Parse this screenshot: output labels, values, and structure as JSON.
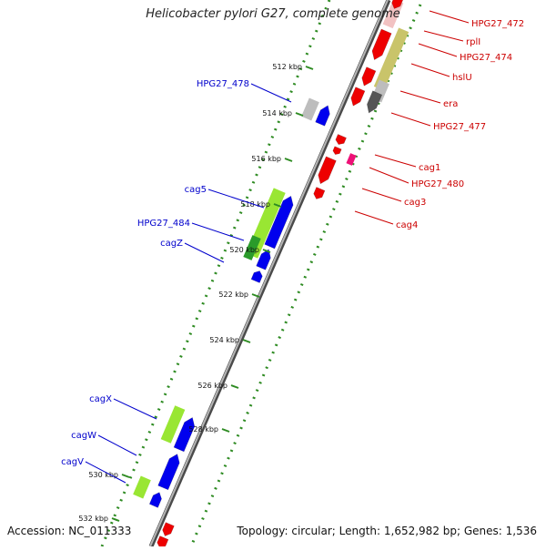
{
  "map": {
    "title": "Helicobacter pylori G27, complete genome",
    "accession": "Accession: NC_011333",
    "summary": "Topology: circular; Length: 1,652,982 bp; Genes: 1,536",
    "colors": {
      "backbone": "#808080",
      "dotted_track": "#2e8b22",
      "forward_gene": "#0000ee",
      "reverse_gene": "#ee0000",
      "forward_label": "#0000cc",
      "reverse_label": "#cc0000",
      "cag_region": "#99e633",
      "accent_magenta": "#ee1177"
    },
    "ticks": [
      "512 kbp",
      "514 kbp",
      "516 kbp",
      "518 kbp",
      "520 kbp",
      "522 kbp",
      "524 kbp",
      "526 kbp",
      "528 kbp",
      "530 kbp",
      "532 kbp"
    ],
    "forward_labels": [
      "HPG27_478",
      "cag5",
      "HPG27_484",
      "cagZ",
      "cagX",
      "cagW",
      "cagV"
    ],
    "reverse_labels": [
      "HPG27_472",
      "rplI",
      "HPG27_474",
      "hslU",
      "era",
      "HPG27_477",
      "cag1",
      "HPG27_480",
      "cag3",
      "cag4"
    ]
  }
}
